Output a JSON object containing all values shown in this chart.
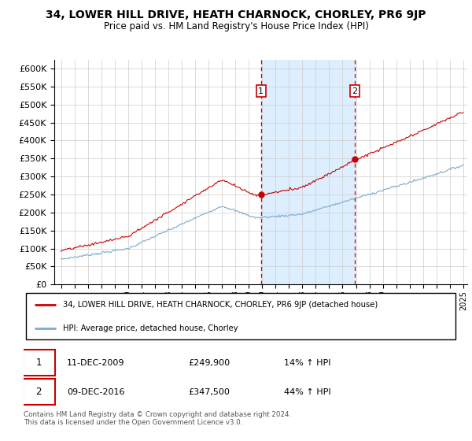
{
  "title": "34, LOWER HILL DRIVE, HEATH CHARNOCK, CHORLEY, PR6 9JP",
  "subtitle": "Price paid vs. HM Land Registry's House Price Index (HPI)",
  "legend_line1": "34, LOWER HILL DRIVE, HEATH CHARNOCK, CHORLEY, PR6 9JP (detached house)",
  "legend_line2": "HPI: Average price, detached house, Chorley",
  "transaction1_date": "11-DEC-2009",
  "transaction1_price": 249900,
  "transaction1_hpi": "14% ↑ HPI",
  "transaction2_date": "09-DEC-2016",
  "transaction2_price": 347500,
  "transaction2_hpi": "44% ↑ HPI",
  "footnote": "Contains HM Land Registry data © Crown copyright and database right 2024.\nThis data is licensed under the Open Government Licence v3.0.",
  "red_color": "#cc0000",
  "blue_color": "#7aabcf",
  "vline_color": "#cc0000",
  "shading_color": "#ddeeff",
  "grid_color": "#cccccc",
  "background_color": "#ffffff",
  "ylim": [
    0,
    625000
  ],
  "ytick_step": 50000,
  "start_year": 1995,
  "end_year": 2025,
  "transaction1_year": 2009.917,
  "transaction2_year": 2016.917
}
